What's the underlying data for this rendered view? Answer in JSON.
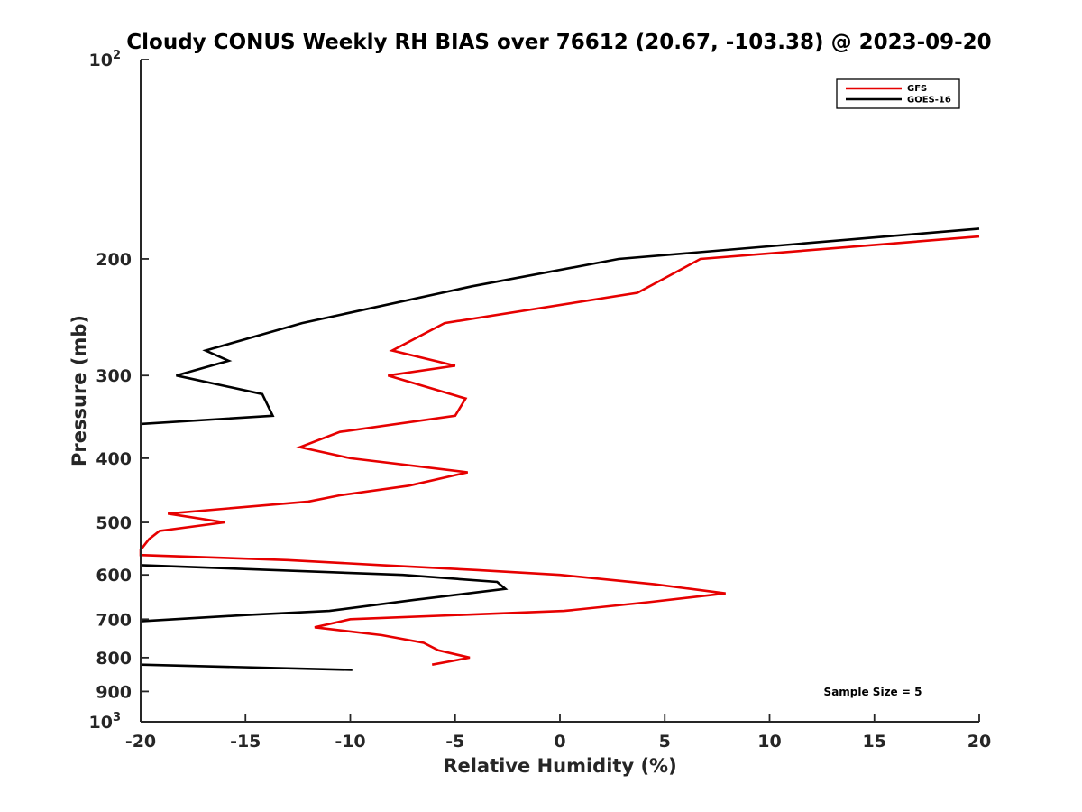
{
  "chart_data": {
    "type": "line",
    "title": "Cloudy CONUS Weekly RH BIAS over 76612 (20.67, -103.38) @ 2023-09-20",
    "xlabel": "Relative Humidity (%)",
    "ylabel": "Pressure (mb)",
    "xlim": [
      -20,
      20
    ],
    "ylim": [
      100,
      1000
    ],
    "yscale": "log",
    "yreversed": true,
    "x_ticks": [
      "-20",
      "-15",
      "-10",
      "-5",
      "0",
      "5",
      "10",
      "15",
      "20"
    ],
    "y_ticks": [
      {
        "value": 100,
        "base": "10",
        "exp": "2"
      },
      {
        "value": 200,
        "label": "200"
      },
      {
        "value": 300,
        "label": "300"
      },
      {
        "value": 400,
        "label": "400"
      },
      {
        "value": 500,
        "label": "500"
      },
      {
        "value": 600,
        "label": "600"
      },
      {
        "value": 700,
        "label": "700"
      },
      {
        "value": 800,
        "label": "800"
      },
      {
        "value": 900,
        "label": "900"
      },
      {
        "value": 1000,
        "base": "10",
        "exp": "3"
      }
    ],
    "legend_position": "top-right",
    "annotation": "Sample Size = 5",
    "series": [
      {
        "name": "GFS",
        "color": "#e60000",
        "points": [
          [
            20,
            185
          ],
          [
            6.7,
            200
          ],
          [
            3.7,
            225
          ],
          [
            -5.5,
            250
          ],
          [
            -8.0,
            275
          ],
          [
            -5.0,
            290
          ],
          [
            -8.2,
            300
          ],
          [
            -4.5,
            325
          ],
          [
            -5.0,
            345
          ],
          [
            -10.5,
            365
          ],
          [
            -12.4,
            385
          ],
          [
            -10.0,
            400
          ],
          [
            -4.4,
            420
          ],
          [
            -7.2,
            440
          ],
          [
            -10.5,
            455
          ],
          [
            -12.0,
            465
          ],
          [
            -18.7,
            485
          ],
          [
            -16.0,
            500
          ],
          [
            -19.1,
            515
          ],
          [
            -19.6,
            530
          ],
          [
            -20.0,
            550
          ],
          [
            -20.0,
            560
          ],
          [
            -13.0,
            570
          ],
          [
            -8.5,
            580
          ],
          [
            -4.0,
            590
          ],
          [
            0.0,
            600
          ],
          [
            4.5,
            620
          ],
          [
            7.9,
            640
          ],
          [
            4.2,
            660
          ],
          [
            0.2,
            680
          ],
          [
            -10.0,
            700
          ],
          [
            -11.7,
            720
          ],
          [
            -8.5,
            740
          ],
          [
            -6.5,
            760
          ],
          [
            -5.8,
            780
          ],
          [
            -4.3,
            800
          ],
          [
            -6.1,
            820
          ]
        ]
      },
      {
        "name": "GOES-16",
        "color": "#000000",
        "points": [
          [
            20,
            180
          ],
          [
            2.8,
            200
          ],
          [
            -4.2,
            220
          ],
          [
            -12.3,
            250
          ],
          [
            -16.9,
            275
          ],
          [
            -15.8,
            285
          ],
          [
            -18.3,
            300
          ],
          [
            -14.2,
            320
          ],
          [
            -13.7,
            345
          ],
          [
            -20.0,
            355
          ],
          [
            null,
            null
          ],
          [
            -20.0,
            580
          ],
          [
            -7.5,
            600
          ],
          [
            -3.0,
            615
          ],
          [
            -2.6,
            630
          ],
          [
            -7.0,
            655
          ],
          [
            -11.0,
            680
          ],
          [
            -15.0,
            690
          ],
          [
            -20.0,
            705
          ],
          [
            null,
            null
          ],
          [
            -20.0,
            820
          ],
          [
            -9.9,
            835
          ]
        ]
      }
    ]
  }
}
